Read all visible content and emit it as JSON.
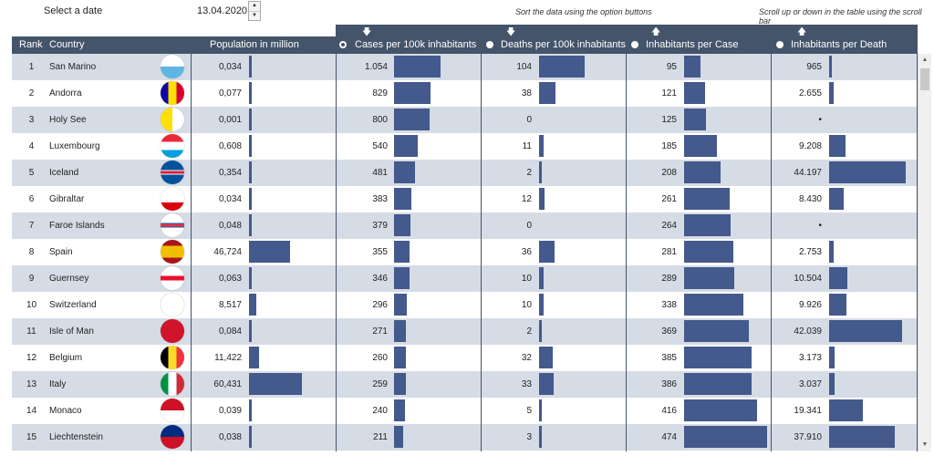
{
  "controls": {
    "date_label": "Select a date",
    "date_value": "13.04.2020",
    "sort_hint": "Sort the data using the option buttons",
    "scroll_hint": "Scroll up or down in the table using the scroll bar"
  },
  "columns": {
    "rank": "Rank",
    "country": "Country",
    "population": "Population in million",
    "cases": "Cases per 100k inhabitants",
    "deaths": "Deaths per 100k inhabitants",
    "inh_case": "Inhabitants per Case",
    "inh_death": "Inhabitants per Death"
  },
  "sort": {
    "selected": "cases"
  },
  "colors": {
    "header": "#44546a",
    "bar": "#44598c",
    "alt_row": "#d6dce5"
  },
  "rows": [
    {
      "rank": "1",
      "country": "San Marino",
      "pop": "0,034",
      "pop_v": 0.034,
      "cases": "1.054",
      "cases_v": 1054,
      "deaths": "104",
      "deaths_v": 104,
      "ipc": "95",
      "ipc_v": 95,
      "ipd": "965",
      "ipd_v": 965,
      "flag": "flag-san-marino-icon"
    },
    {
      "rank": "2",
      "country": "Andorra",
      "pop": "0,077",
      "pop_v": 0.077,
      "cases": "829",
      "cases_v": 829,
      "deaths": "38",
      "deaths_v": 38,
      "ipc": "121",
      "ipc_v": 121,
      "ipd": "2.655",
      "ipd_v": 2655,
      "flag": "flag-andorra-icon"
    },
    {
      "rank": "3",
      "country": "Holy See",
      "pop": "0,001",
      "pop_v": 0.001,
      "cases": "800",
      "cases_v": 800,
      "deaths": "0",
      "deaths_v": 0,
      "ipc": "125",
      "ipc_v": 125,
      "ipd": "•",
      "ipd_v": 0,
      "flag": "flag-holy-see-icon"
    },
    {
      "rank": "4",
      "country": "Luxembourg",
      "pop": "0,608",
      "pop_v": 0.608,
      "cases": "540",
      "cases_v": 540,
      "deaths": "11",
      "deaths_v": 11,
      "ipc": "185",
      "ipc_v": 185,
      "ipd": "9.208",
      "ipd_v": 9208,
      "flag": "flag-luxembourg-icon"
    },
    {
      "rank": "5",
      "country": "Iceland",
      "pop": "0,354",
      "pop_v": 0.354,
      "cases": "481",
      "cases_v": 481,
      "deaths": "2",
      "deaths_v": 2,
      "ipc": "208",
      "ipc_v": 208,
      "ipd": "44.197",
      "ipd_v": 44197,
      "flag": "flag-iceland-icon"
    },
    {
      "rank": "6",
      "country": "Gibraltar",
      "pop": "0,034",
      "pop_v": 0.034,
      "cases": "383",
      "cases_v": 383,
      "deaths": "12",
      "deaths_v": 12,
      "ipc": "261",
      "ipc_v": 261,
      "ipd": "8.430",
      "ipd_v": 8430,
      "flag": "flag-gibraltar-icon"
    },
    {
      "rank": "7",
      "country": "Faroe Islands",
      "pop": "0,048",
      "pop_v": 0.048,
      "cases": "379",
      "cases_v": 379,
      "deaths": "0",
      "deaths_v": 0,
      "ipc": "264",
      "ipc_v": 264,
      "ipd": "•",
      "ipd_v": 0,
      "flag": "flag-faroe-islands-icon"
    },
    {
      "rank": "8",
      "country": "Spain",
      "pop": "46,724",
      "pop_v": 46.724,
      "cases": "355",
      "cases_v": 355,
      "deaths": "36",
      "deaths_v": 36,
      "ipc": "281",
      "ipc_v": 281,
      "ipd": "2.753",
      "ipd_v": 2753,
      "flag": "flag-spain-icon"
    },
    {
      "rank": "9",
      "country": "Guernsey",
      "pop": "0,063",
      "pop_v": 0.063,
      "cases": "346",
      "cases_v": 346,
      "deaths": "10",
      "deaths_v": 10,
      "ipc": "289",
      "ipc_v": 289,
      "ipd": "10.504",
      "ipd_v": 10504,
      "flag": "flag-guernsey-icon"
    },
    {
      "rank": "10",
      "country": "Switzerland",
      "pop": "8,517",
      "pop_v": 8.517,
      "cases": "296",
      "cases_v": 296,
      "deaths": "10",
      "deaths_v": 10,
      "ipc": "338",
      "ipc_v": 338,
      "ipd": "9.926",
      "ipd_v": 9926,
      "flag": "flag-switzerland-icon"
    },
    {
      "rank": "11",
      "country": "Isle of Man",
      "pop": "0,084",
      "pop_v": 0.084,
      "cases": "271",
      "cases_v": 271,
      "deaths": "2",
      "deaths_v": 2,
      "ipc": "369",
      "ipc_v": 369,
      "ipd": "42.039",
      "ipd_v": 42039,
      "flag": "flag-isle-of-man-icon"
    },
    {
      "rank": "12",
      "country": "Belgium",
      "pop": "11,422",
      "pop_v": 11.422,
      "cases": "260",
      "cases_v": 260,
      "deaths": "32",
      "deaths_v": 32,
      "ipc": "385",
      "ipc_v": 385,
      "ipd": "3.173",
      "ipd_v": 3173,
      "flag": "flag-belgium-icon"
    },
    {
      "rank": "13",
      "country": "Italy",
      "pop": "60,431",
      "pop_v": 60.431,
      "cases": "259",
      "cases_v": 259,
      "deaths": "33",
      "deaths_v": 33,
      "ipc": "386",
      "ipc_v": 386,
      "ipd": "3.037",
      "ipd_v": 3037,
      "flag": "flag-italy-icon"
    },
    {
      "rank": "14",
      "country": "Monaco",
      "pop": "0,039",
      "pop_v": 0.039,
      "cases": "240",
      "cases_v": 240,
      "deaths": "5",
      "deaths_v": 5,
      "ipc": "416",
      "ipc_v": 416,
      "ipd": "19.341",
      "ipd_v": 19341,
      "flag": "flag-monaco-icon"
    },
    {
      "rank": "15",
      "country": "Liechtenstein",
      "pop": "0,038",
      "pop_v": 0.038,
      "cases": "211",
      "cases_v": 211,
      "deaths": "3",
      "deaths_v": 3,
      "ipc": "474",
      "ipc_v": 474,
      "ipd": "37.910",
      "ipd_v": 37910,
      "flag": "flag-liechtenstein-icon"
    }
  ]
}
